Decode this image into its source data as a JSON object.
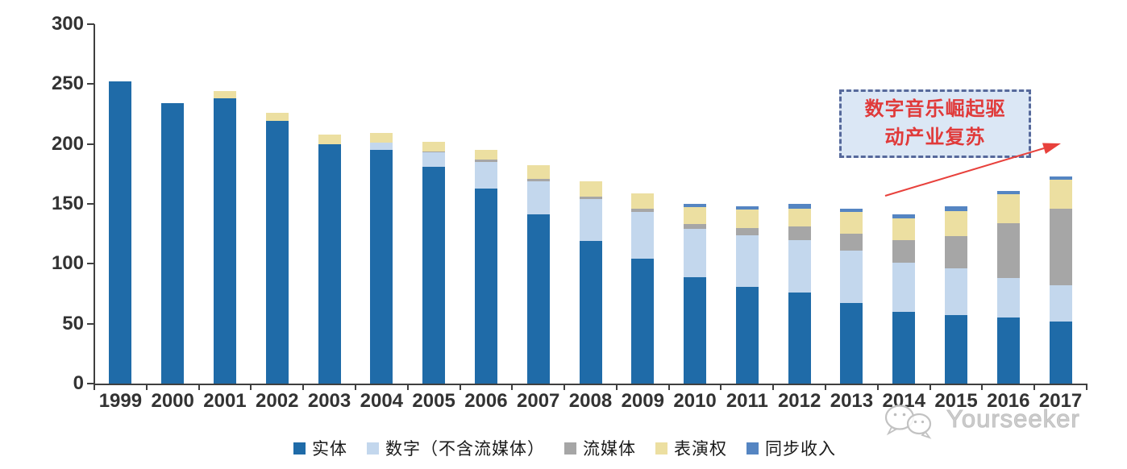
{
  "chart_data": {
    "type": "bar",
    "stacked": true,
    "categories": [
      "1999",
      "2000",
      "2001",
      "2002",
      "2003",
      "2004",
      "2005",
      "2006",
      "2007",
      "2008",
      "2009",
      "2010",
      "2011",
      "2012",
      "2013",
      "2014",
      "2015",
      "2016",
      "2017"
    ],
    "series": [
      {
        "name": "实体",
        "color": "#1f6ba8",
        "values": [
          252,
          234,
          238,
          219,
          200,
          195,
          181,
          163,
          141,
          119,
          104,
          89,
          81,
          76,
          67,
          60,
          57,
          55,
          52
        ]
      },
      {
        "name": "数字（不含流媒体）",
        "color": "#c3d7ed",
        "values": [
          0,
          0,
          0,
          0,
          0,
          6,
          12,
          22,
          28,
          35,
          39,
          40,
          43,
          44,
          44,
          41,
          39,
          33,
          30
        ]
      },
      {
        "name": "流媒体",
        "color": "#a6a6a6",
        "values": [
          0,
          0,
          0,
          0,
          0,
          0,
          1,
          2,
          2,
          2,
          3,
          4,
          6,
          11,
          14,
          19,
          27,
          46,
          64
        ]
      },
      {
        "name": "表演权",
        "color": "#ecdfa1",
        "values": [
          0,
          0,
          6,
          7,
          8,
          8,
          8,
          8,
          11,
          13,
          13,
          14,
          15,
          15,
          18,
          18,
          21,
          24,
          24
        ]
      },
      {
        "name": "同步收入",
        "color": "#5585c2",
        "values": [
          0,
          0,
          0,
          0,
          0,
          0,
          0,
          0,
          0,
          0,
          0,
          3,
          3,
          4,
          3,
          3,
          4,
          3,
          3
        ]
      }
    ],
    "ylim": [
      0,
      300
    ],
    "yticks": [
      0,
      50,
      100,
      150,
      200,
      250,
      300
    ],
    "legend_position": "bottom",
    "grid": false
  },
  "annotation": {
    "lines": [
      "数字音乐崛起驱",
      "动产业复苏"
    ],
    "box_fill": "#dbe7f5",
    "border_color": "#56699b",
    "text_color": "#e03a3a",
    "arrow_color": "#e8413c"
  },
  "watermark": {
    "text": "Yourseeker",
    "logo": "wechat-icon",
    "color": "#c6c6c6"
  },
  "axis": {
    "line_color": "#3f3f3f",
    "label_color": "#333333"
  }
}
